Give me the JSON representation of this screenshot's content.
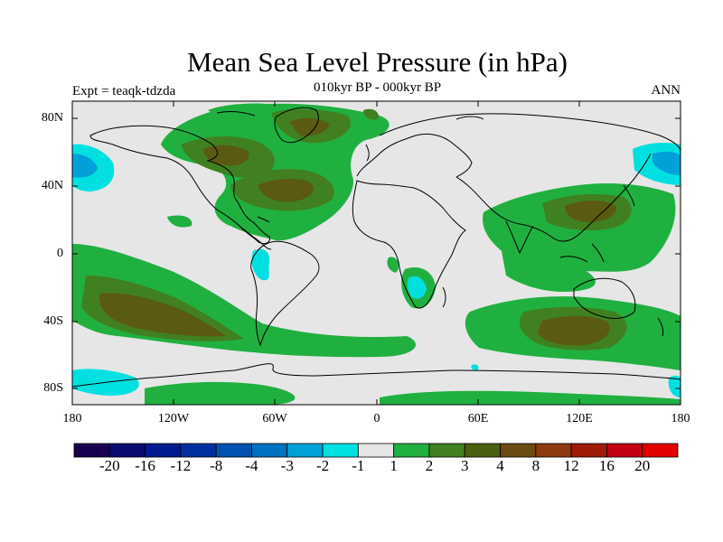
{
  "map": {
    "title": "Mean Sea Level Pressure (in hPa)",
    "subtitle": "010kyr BP - 000kyr BP",
    "left_label": "Expt = teaqk-tdzda",
    "right_label": "ANN",
    "lat_ticks": [
      "80N",
      "40N",
      "0",
      "40S",
      "80S"
    ],
    "lon_ticks": [
      "180",
      "120W",
      "60W",
      "0",
      "60E",
      "120E",
      "180"
    ],
    "colors": {
      "land_ocean_bg": "#e6e6e6",
      "cyan": "#00e0e0",
      "light_blue": "#00a0d8",
      "green": "#20b040",
      "mid_green": "#408020",
      "olive": "#4a6010",
      "brown": "#6b4a10"
    }
  },
  "colorbar": {
    "labels": [
      "-20",
      "-16",
      "-12",
      "-8",
      "-4",
      "-3",
      "-2",
      "-1",
      "1",
      "2",
      "3",
      "4",
      "8",
      "12",
      "16",
      "20"
    ],
    "colors": [
      "#1a0050",
      "#0a0a70",
      "#001a90",
      "#0030a0",
      "#0050b0",
      "#0070c0",
      "#00a0d8",
      "#00e0e0",
      "#e6e6e6",
      "#20b040",
      "#408020",
      "#4a6010",
      "#6b4a10",
      "#8b3a10",
      "#a01a0a",
      "#c00010",
      "#e00000"
    ]
  }
}
